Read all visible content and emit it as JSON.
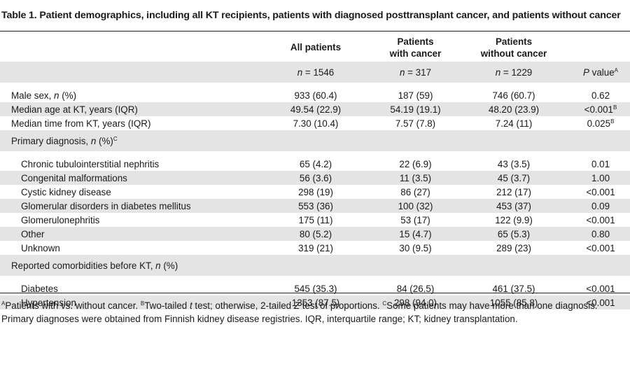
{
  "title": "Table 1. Patient demographics, including all KT recipients, patients with diagnosed posttransplant cancer, and patients without cancer",
  "header": {
    "all": "All patients",
    "cancer_1": "Patients",
    "cancer_2": "with cancer",
    "nocancer_1": "Patients",
    "nocancer_2": "without cancer"
  },
  "n_row": {
    "n_symbol": "n",
    "all": " = 1546",
    "cancer": " = 317",
    "nocancer": " = 1229",
    "p_symbol": "P",
    "p_label": " value",
    "p_sup": "A"
  },
  "rows": {
    "male": {
      "label_a": "Male sex, ",
      "label_n": "n",
      "label_b": " (%)",
      "all": "933 (60.4)",
      "cancer": "187 (59)",
      "nocancer": "746 (60.7)",
      "p": "0.62"
    },
    "age": {
      "label": "Median age at KT, years (IQR)",
      "all": "49.54 (22.9)",
      "cancer": "54.19 (19.1)",
      "nocancer": "48.20 (23.9)",
      "p": "<0.001",
      "p_sup": "B"
    },
    "time": {
      "label": "Median time from KT, years (IQR)",
      "all": "7.30 (10.4)",
      "cancer": "7.57 (7.8)",
      "nocancer": "7.24 (11)",
      "p": "0.025",
      "p_sup": "B"
    }
  },
  "primary_section": {
    "label_a": "Primary diagnosis, ",
    "label_n": "n",
    "label_b": " (%)",
    "sup": "C"
  },
  "primary": [
    {
      "label": "Chronic tubulointerstitial nephritis",
      "all": "65 (4.2)",
      "cancer": "22 (6.9)",
      "nocancer": "43 (3.5)",
      "p": "0.01"
    },
    {
      "label": "Congenital malformations",
      "all": "56 (3.6)",
      "cancer": "11 (3.5)",
      "nocancer": "45 (3.7)",
      "p": "1.00"
    },
    {
      "label": "Cystic kidney disease",
      "all": "298 (19)",
      "cancer": "86 (27)",
      "nocancer": "212 (17)",
      "p": "<0.001"
    },
    {
      "label": "Glomerular disorders in diabetes mellitus",
      "all": "553 (36)",
      "cancer": "100 (32)",
      "nocancer": "453 (37)",
      "p": "0.09"
    },
    {
      "label": "Glomerulonephritis",
      "all": "175 (11)",
      "cancer": "53 (17)",
      "nocancer": "122 (9.9)",
      "p": "<0.001"
    },
    {
      "label": "Other",
      "all": "80 (5.2)",
      "cancer": "15 (4.7)",
      "nocancer": "65 (5.3)",
      "p": "0.80"
    },
    {
      "label": "Unknown",
      "all": "319 (21)",
      "cancer": "30 (9.5)",
      "nocancer": "289 (23)",
      "p": "<0.001"
    }
  ],
  "comorb_section": {
    "label_a": "Reported comorbidities before KT, ",
    "label_n": "n",
    "label_b": " (%)"
  },
  "comorb": [
    {
      "label": "Diabetes",
      "all": "545 (35.3)",
      "cancer": "84 (26.5)",
      "nocancer": "461 (37.5)",
      "p": "<0.001"
    },
    {
      "label": "Hypertension",
      "all": "1353 (87.5)",
      "cancer": "298 (94.0)",
      "nocancer": "1055 (85.8)",
      "p": "<0.001"
    }
  ],
  "footnotes": {
    "a_sup": "A",
    "a_text": "Patients with vs. without cancer. ",
    "b_sup": "B",
    "b_text_1": "Two-tailed ",
    "b_t": "t",
    "b_text_2": " test; otherwise, 2-tailed ",
    "b_z": "Z",
    "b_text_3": " test of proportions. ",
    "c_sup": "C",
    "c_text": "Some patients may have more than one diagnosis.",
    "line2": "Primary diagnoses were obtained from Finnish kidney disease registries. IQR, interquartile range; KT; kidney transplantation."
  }
}
